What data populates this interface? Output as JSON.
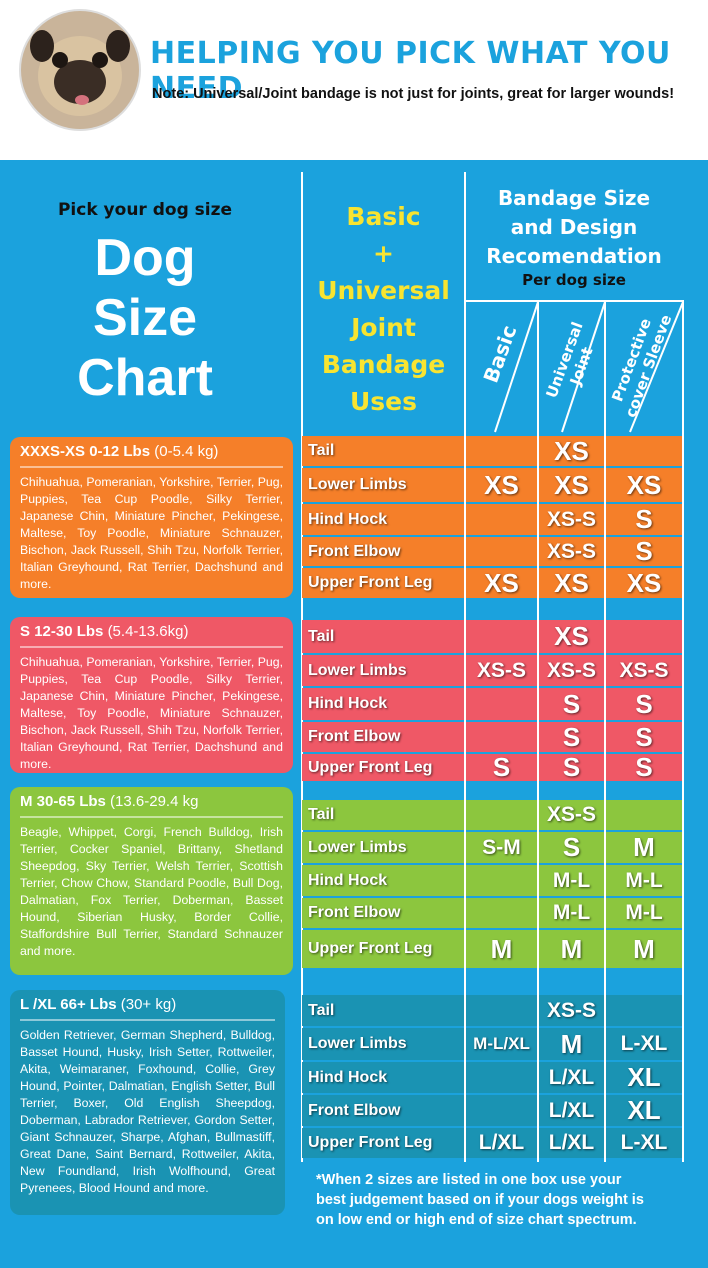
{
  "header": {
    "title": "HELPING YOU PICK WHAT YOU NEED",
    "note": "Note: Universal/Joint bandage is not just for joints, great for larger wounds!"
  },
  "left_header": {
    "subtitle": "Pick your dog size",
    "title_lines": [
      "Dog",
      "Size",
      "Chart"
    ]
  },
  "uses_header": [
    "Basic",
    "+",
    "Universal",
    "Joint",
    "Bandage",
    "Uses"
  ],
  "recommendation_header": {
    "title_lines": [
      "Bandage Size",
      "and Design",
      "Recomendation"
    ],
    "subtitle": "Per dog size"
  },
  "columns": [
    [
      "Basic"
    ],
    [
      "Universal",
      "Joint"
    ],
    [
      "Protective",
      "cover Sleeve"
    ]
  ],
  "sections": [
    {
      "size": "XXXS-XS",
      "weight": "0-12 Lbs",
      "metric": "(0-5.4 kg)",
      "breeds": "Chihuahua, Pomeranian, Yorkshire, Terrier, Pug, Puppies, Tea Cup Poodle, Silky Terrier, Japanese Chin, Miniature Pincher, Pekingese, Maltese, Toy Poodle, Miniature Schnauzer, Bischon, Jack Russell, Shih Tzu, Norfolk Terrier, Italian Greyhound, Rat Terrier, Dachshund and more.",
      "rows": [
        [
          "Tail",
          null,
          "XS",
          null
        ],
        [
          "Lower Limbs",
          "XS",
          "XS",
          "XS"
        ],
        [
          "Hind Hock",
          null,
          "XS-S",
          "S"
        ],
        [
          "Front Elbow",
          null,
          "XS-S",
          "S"
        ],
        [
          "Upper Front Leg",
          "XS",
          "XS",
          "XS"
        ]
      ]
    },
    {
      "size": "S",
      "weight": "12-30 Lbs",
      "metric": "(5.4-13.6kg)",
      "breeds": "Chihuahua, Pomeranian, Yorkshire, Terrier, Pug, Puppies, Tea Cup Poodle, Silky Terrier, Japanese Chin, Miniature Pincher, Pekingese, Maltese, Toy Poodle, Miniature Schnauzer, Bischon, Jack Russell, Shih Tzu, Norfolk Terrier, Italian Greyhound, Rat Terrier, Dachshund and more.",
      "rows": [
        [
          "Tail",
          null,
          "XS",
          null
        ],
        [
          "Lower Limbs",
          "XS-S",
          "XS-S",
          "XS-S"
        ],
        [
          "Hind Hock",
          null,
          "S",
          "S"
        ],
        [
          "Front Elbow",
          null,
          "S",
          "S"
        ],
        [
          "Upper Front Leg",
          "S",
          "S",
          "S"
        ]
      ]
    },
    {
      "size": "M",
      "weight": "30-65 Lbs",
      "metric": "(13.6-29.4 kg",
      "breeds": "Beagle, Whippet, Corgi, French Bulldog, Irish Terrier, Cocker Spaniel, Brittany, Shetland Sheepdog, Sky Terrier, Welsh Terrier, Scottish Terrier, Chow Chow, Standard Poodle, Bull Dog, Dalmatian, Fox Terrier, Doberman, Basset Hound, Siberian Husky, Border Collie, Staffordshire Bull Terrier, Standard Schnauzer and more.",
      "rows": [
        [
          "Tail",
          null,
          "XS-S",
          null
        ],
        [
          "Lower Limbs",
          "S-M",
          "S",
          "M"
        ],
        [
          "Hind Hock",
          null,
          "M-L",
          "M-L"
        ],
        [
          "Front Elbow",
          null,
          "M-L",
          "M-L"
        ],
        [
          "Upper Front Leg",
          "M",
          "M",
          "M"
        ]
      ]
    },
    {
      "size": "L /XL",
      "weight": "66+ Lbs",
      "metric": "(30+ kg)",
      "breeds": "Golden Retriever, German Shepherd, Bulldog, Basset Hound, Husky, Irish Setter, Rottweiler, Akita, Weimaraner, Foxhound, Collie, Grey Hound, Pointer, Dalmatian, English Setter, Bull Terrier, Boxer, Old English Sheepdog, Doberman, Labrador Retriever, Gordon Setter, Giant Schnauzer, Sharpe, Afghan, Bullmastiff, Great Dane, Saint Bernard, Rottweiler, Akita, New Foundland, Irish Wolfhound, Great Pyrenees, Blood Hound and more.",
      "rows": [
        [
          "Tail",
          null,
          "XS-S",
          null
        ],
        [
          "Lower Limbs",
          "M-L/XL",
          "M",
          "L-XL"
        ],
        [
          "Hind Hock",
          null,
          "L/XL",
          "XL"
        ],
        [
          "Front Elbow",
          null,
          "L/XL",
          "XL"
        ],
        [
          "Upper Front Leg",
          "L/XL",
          "L/XL",
          "L-XL"
        ]
      ]
    }
  ],
  "footnote": "*When 2 sizes are listed in one box use your best judgement based on if your dogs weight is on low end or high end of size chart spectrum."
}
